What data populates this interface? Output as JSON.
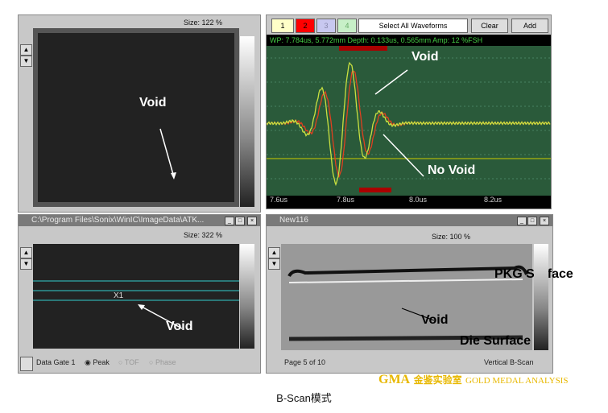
{
  "top_left": {
    "size": "Size: 122 %",
    "void_label": "Void"
  },
  "waveform": {
    "buttons": [
      "1",
      "2",
      "3",
      "4"
    ],
    "button_colors": [
      "#ffffc8",
      "#ff0000",
      "#c8c8f0",
      "#c8f0c8"
    ],
    "select_all": "Select All Waveforms",
    "clear": "Clear",
    "add": "Add",
    "info": "WP: 7.784us, 5.772mm  Depth: 0.133us, 0.565mm  Amp:   12 %FSH",
    "x_ticks": [
      "7.6us",
      "7.8us",
      "8.0us",
      "8.2us"
    ],
    "void_label": "Void",
    "no_void_label": "No Void",
    "colors": {
      "background": "#2a5a3a",
      "trace_void": "#c8e040",
      "trace_no_void": "#e04020"
    }
  },
  "bottom_left": {
    "title": "C:\\Program Files\\Sonix\\WinIC\\ImageData\\ATK...",
    "size": "Size: 322 %",
    "marker": "X1",
    "void_label": "Void",
    "gate": "Data Gate 1",
    "options": [
      "Peak",
      "TOF",
      "Phase"
    ],
    "selected": "Peak"
  },
  "bottom_right": {
    "title": "New116",
    "size": "Size: 100 %",
    "pkg_label": "PKG Surface",
    "void_label": "Void",
    "die_label": "Die Surface",
    "page": "Page 5 of 10",
    "vertical": "Vertical B-Scan"
  },
  "watermark": {
    "logo": "GMA",
    "cn": "金鉴实验室",
    "en": "GOLD MEDAL ANALYSIS"
  },
  "caption": "B-Scan模式"
}
